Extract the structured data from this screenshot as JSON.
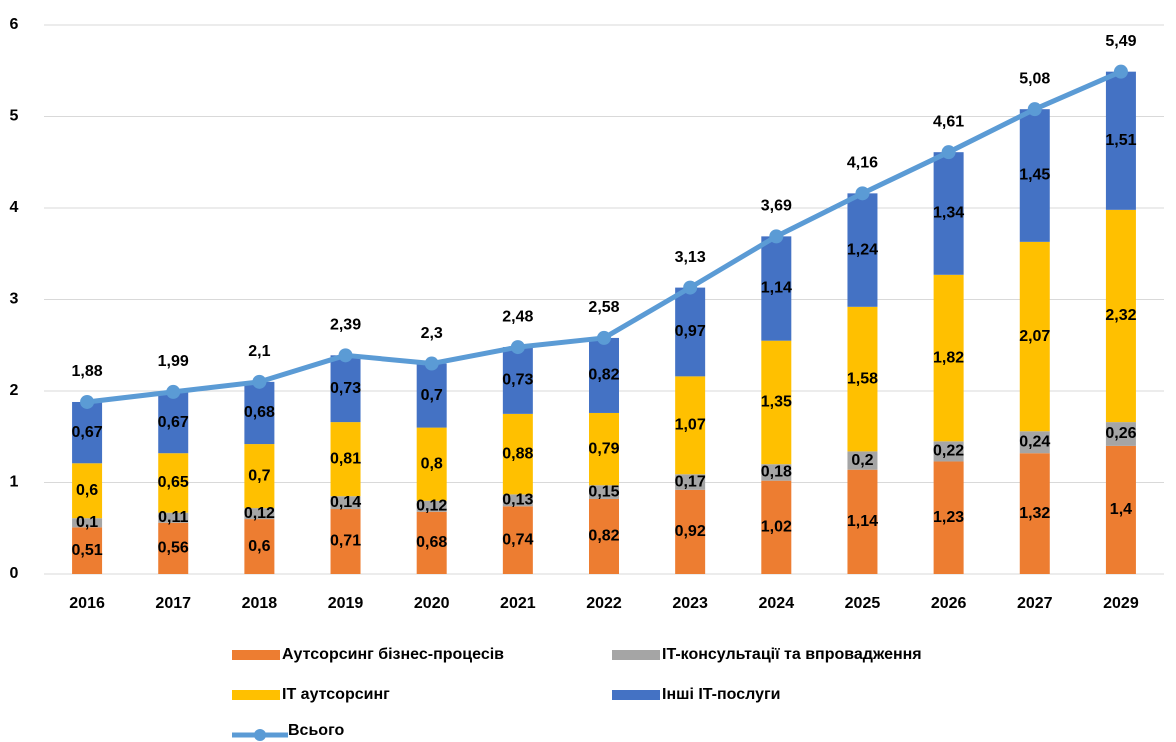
{
  "chart_data": {
    "type": "bar",
    "stacked": true,
    "categories": [
      "2016",
      "2017",
      "2018",
      "2019",
      "2020",
      "2021",
      "2022",
      "2023",
      "2024",
      "2025",
      "2026",
      "2027",
      "2029"
    ],
    "ylim": [
      0,
      6
    ],
    "yticks": [
      0,
      1,
      2,
      3,
      4,
      5,
      6
    ],
    "grid": true,
    "series": [
      {
        "name": "Аутсорсинг бізнес-процесів",
        "color": "#ed7d31",
        "values": [
          0.51,
          0.56,
          0.6,
          0.71,
          0.68,
          0.74,
          0.82,
          0.92,
          1.02,
          1.14,
          1.23,
          1.32,
          1.4
        ],
        "value_labels": [
          "0,51",
          "0,56",
          "0,6",
          "0,71",
          "0,68",
          "0,74",
          "0,82",
          "0,92",
          "1,02",
          "1,14",
          "1,23",
          "1,32",
          "1,4"
        ]
      },
      {
        "name": "IT-консультації та впровадження",
        "color": "#a5a5a5",
        "values": [
          0.1,
          0.11,
          0.12,
          0.14,
          0.12,
          0.13,
          0.15,
          0.17,
          0.18,
          0.2,
          0.22,
          0.24,
          0.26
        ],
        "value_labels": [
          "0,1",
          "0,11",
          "0,12",
          "0,14",
          "0,12",
          "0,13",
          "0,15",
          "0,17",
          "0,18",
          "0,2",
          "0,22",
          "0,24",
          "0,26"
        ]
      },
      {
        "name": "IT аутсорсинг",
        "color": "#ffc000",
        "values": [
          0.6,
          0.65,
          0.7,
          0.81,
          0.8,
          0.88,
          0.79,
          1.07,
          1.35,
          1.58,
          1.82,
          2.07,
          2.32
        ],
        "value_labels": [
          "0,6",
          "0,65",
          "0,7",
          "0,81",
          "0,8",
          "0,88",
          "0,79",
          "1,07",
          "1,35",
          "1,58",
          "1,82",
          "2,07",
          "2,32"
        ]
      },
      {
        "name": "Інші IT-послуги",
        "color": "#4472c4",
        "values": [
          0.67,
          0.67,
          0.68,
          0.73,
          0.7,
          0.73,
          0.82,
          0.97,
          1.14,
          1.24,
          1.34,
          1.45,
          1.51
        ],
        "value_labels": [
          "0,67",
          "0,67",
          "0,68",
          "0,73",
          "0,7",
          "0,73",
          "0,82",
          "0,97",
          "1,14",
          "1,24",
          "1,34",
          "1,45",
          "1,51"
        ]
      },
      {
        "name": "Всього",
        "type": "line",
        "color": "#5b9bd5",
        "values": [
          1.88,
          1.99,
          2.1,
          2.39,
          2.3,
          2.48,
          2.58,
          3.13,
          3.69,
          4.16,
          4.61,
          5.08,
          5.49
        ],
        "value_labels": [
          "1,88",
          "1,99",
          "2,1",
          "2,39",
          "2,3",
          "2,48",
          "2,58",
          "3,13",
          "3,69",
          "4,16",
          "4,61",
          "5,08",
          "5,49"
        ]
      }
    ]
  }
}
